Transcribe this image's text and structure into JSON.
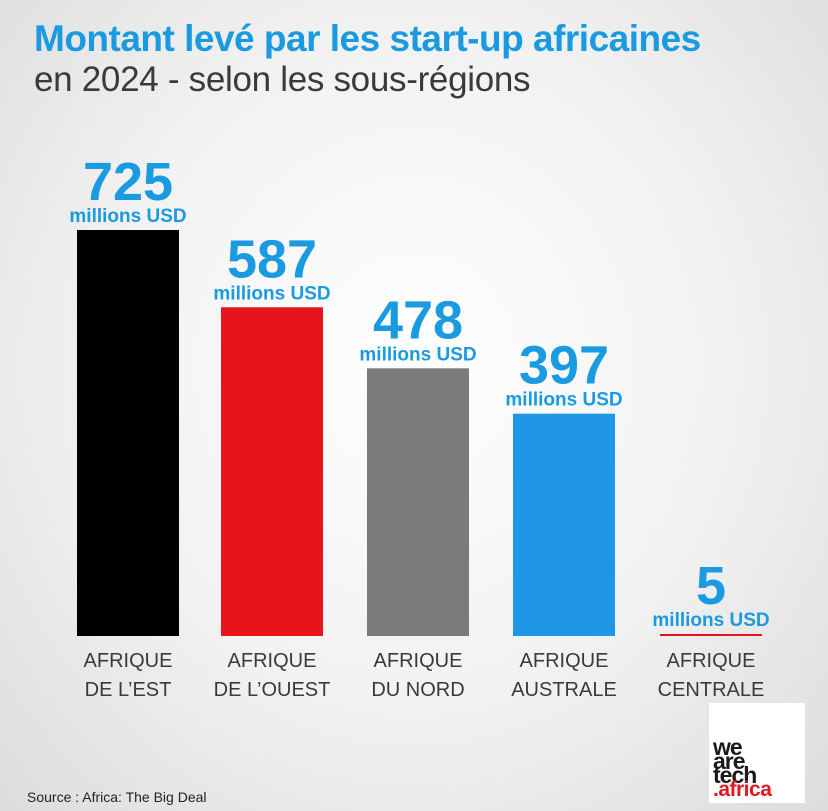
{
  "title": "Montant levé par les start-up africaines",
  "subtitle": "en 2024 - selon les sous-régions",
  "source": "Source : Africa: The Big Deal",
  "logo": {
    "line1": "we",
    "line2": "are",
    "line3": "tech",
    "line4": ".africa"
  },
  "chart_data": {
    "type": "bar",
    "categories": [
      [
        "AFRIQUE",
        "DE L’EST"
      ],
      [
        "AFRIQUE",
        "DE L’OUEST"
      ],
      [
        "AFRIQUE",
        "DU NORD"
      ],
      [
        "AFRIQUE",
        "AUSTRALE"
      ],
      [
        "AFRIQUE",
        "CENTRALE"
      ]
    ],
    "values": [
      725,
      587,
      478,
      397,
      5
    ],
    "value_unit": "millions USD",
    "colors": [
      "#000000",
      "#e8141c",
      "#7b7b7b",
      "#1f97e6",
      "#e8141c"
    ],
    "label_color": "#1a9ae0",
    "ylim": [
      0,
      725
    ],
    "grid": false,
    "legend": "none"
  }
}
